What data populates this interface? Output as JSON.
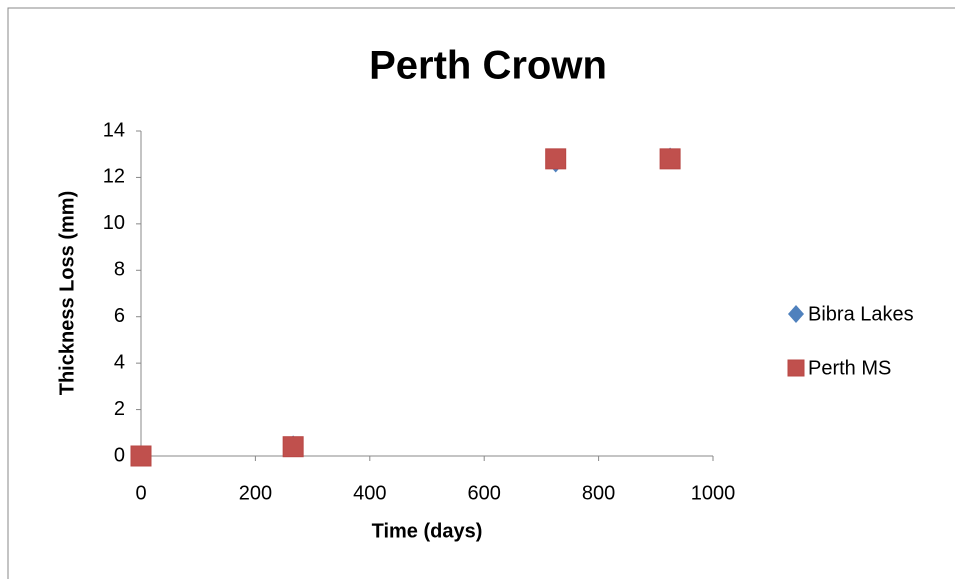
{
  "chart_data": {
    "type": "scatter",
    "title": "Perth Crown",
    "x_label": "Time (days)",
    "y_label": "Thickness Loss (mm)",
    "series": [
      {
        "name": "Bibra Lakes",
        "color": "#4f81bd",
        "marker": "diamond",
        "x": [
          0,
          266,
          725,
          925
        ],
        "values": [
          0,
          0.5,
          12.6,
          12.9
        ]
      },
      {
        "name": "Perth MS",
        "color": "#c0504d",
        "marker": "square",
        "x": [
          0,
          266,
          725,
          925
        ],
        "values": [
          0,
          0.4,
          12.8,
          12.8
        ]
      }
    ],
    "xlim": [
      0,
      1000
    ],
    "xticks": [
      0,
      200,
      400,
      600,
      800,
      1000
    ],
    "ylim": [
      0,
      14
    ],
    "yticks": [
      0,
      2,
      4,
      6,
      8,
      10,
      12,
      14
    ],
    "legend": "right"
  }
}
